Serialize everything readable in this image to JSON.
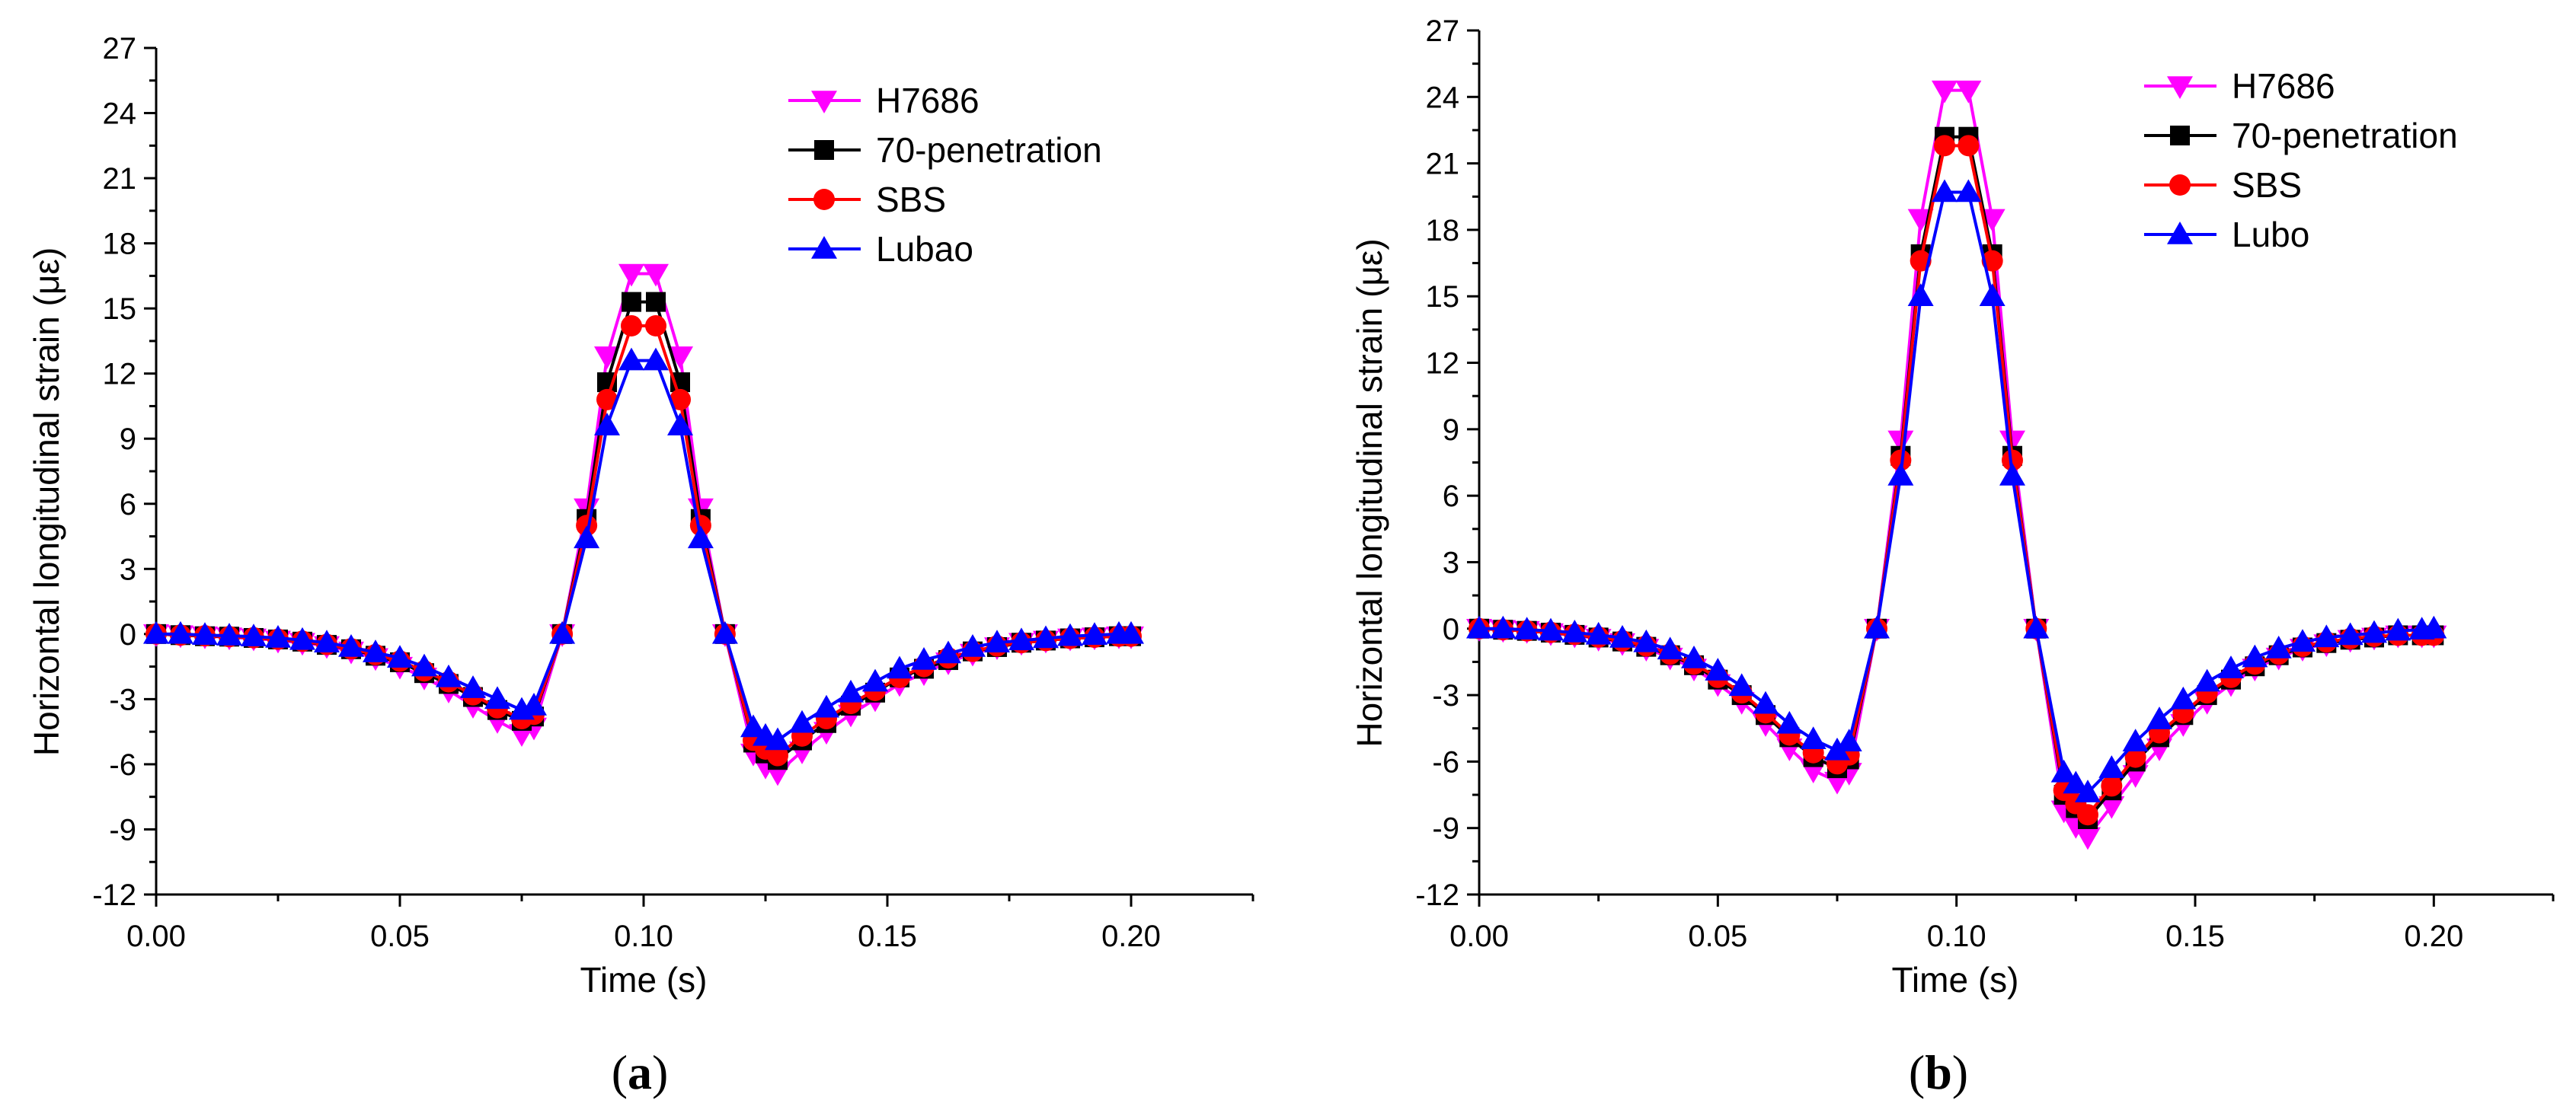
{
  "chart_data": [
    {
      "type": "line",
      "panel_label": "a",
      "xlabel": "Time (s)",
      "ylabel": "Horizontal longitudinal strain (με)",
      "xlim": [
        0.0,
        0.225
      ],
      "ylim": [
        -12,
        27
      ],
      "xticks": [
        "0.00",
        "0.05",
        "0.10",
        "0.15",
        "0.20"
      ],
      "yticks": [
        "-12",
        "-9",
        "-6",
        "-3",
        "0",
        "3",
        "6",
        "9",
        "12",
        "15",
        "18",
        "21",
        "24",
        "27"
      ],
      "legend_position": "top-right",
      "x": [
        0.0,
        0.005,
        0.01,
        0.015,
        0.02,
        0.025,
        0.03,
        0.035,
        0.04,
        0.045,
        0.05,
        0.055,
        0.06,
        0.065,
        0.07,
        0.075,
        0.0775,
        0.0833,
        0.0883,
        0.0925,
        0.0975,
        0.1025,
        0.1075,
        0.1117,
        0.1167,
        0.1225,
        0.125,
        0.1275,
        0.1325,
        0.1375,
        0.1425,
        0.1475,
        0.1525,
        0.1575,
        0.1625,
        0.1675,
        0.1725,
        0.1775,
        0.1825,
        0.1875,
        0.1925,
        0.1975,
        0.2
      ],
      "series": [
        {
          "name": "H7686",
          "color": "#ff00ff",
          "marker": "triangle-down",
          "values": [
            0.0,
            -0.05,
            -0.1,
            -0.15,
            -0.2,
            -0.3,
            -0.4,
            -0.55,
            -0.8,
            -1.1,
            -1.5,
            -2.0,
            -2.6,
            -3.3,
            -4.0,
            -4.6,
            -4.3,
            0.0,
            5.8,
            12.8,
            16.6,
            16.6,
            12.8,
            5.8,
            0.0,
            -5.5,
            -6.1,
            -6.4,
            -5.4,
            -4.5,
            -3.7,
            -3.0,
            -2.3,
            -1.8,
            -1.3,
            -0.9,
            -0.6,
            -0.4,
            -0.3,
            -0.2,
            -0.15,
            -0.1,
            -0.1
          ]
        },
        {
          "name": "70-penetration",
          "color": "#000000",
          "marker": "square",
          "values": [
            0.0,
            -0.05,
            -0.1,
            -0.12,
            -0.18,
            -0.25,
            -0.35,
            -0.5,
            -0.7,
            -1.0,
            -1.3,
            -1.8,
            -2.3,
            -2.9,
            -3.5,
            -4.0,
            -3.8,
            0.0,
            5.3,
            11.6,
            15.3,
            15.3,
            11.6,
            5.3,
            0.0,
            -5.0,
            -5.5,
            -5.8,
            -4.9,
            -4.1,
            -3.3,
            -2.7,
            -2.0,
            -1.6,
            -1.2,
            -0.8,
            -0.6,
            -0.4,
            -0.3,
            -0.2,
            -0.15,
            -0.1,
            -0.1
          ]
        },
        {
          "name": "SBS",
          "color": "#ff0000",
          "marker": "circle",
          "values": [
            0.0,
            -0.05,
            -0.08,
            -0.12,
            -0.17,
            -0.24,
            -0.33,
            -0.48,
            -0.68,
            -0.95,
            -1.25,
            -1.7,
            -2.2,
            -2.8,
            -3.4,
            -3.9,
            -3.7,
            0.0,
            5.0,
            10.8,
            14.2,
            14.2,
            10.8,
            5.0,
            0.0,
            -4.9,
            -5.3,
            -5.6,
            -4.7,
            -3.9,
            -3.2,
            -2.6,
            -2.0,
            -1.5,
            -1.1,
            -0.8,
            -0.55,
            -0.4,
            -0.3,
            -0.2,
            -0.15,
            -0.1,
            -0.1
          ]
        },
        {
          "name": "Lubao",
          "color": "#0000ff",
          "marker": "triangle-up",
          "values": [
            0.0,
            0.0,
            -0.05,
            -0.08,
            -0.12,
            -0.18,
            -0.28,
            -0.4,
            -0.6,
            -0.85,
            -1.1,
            -1.5,
            -2.0,
            -2.5,
            -3.0,
            -3.5,
            -3.3,
            0.0,
            4.4,
            9.6,
            12.6,
            12.6,
            9.6,
            4.4,
            0.0,
            -4.3,
            -4.7,
            -4.9,
            -4.1,
            -3.4,
            -2.7,
            -2.2,
            -1.6,
            -1.2,
            -0.9,
            -0.6,
            -0.4,
            -0.3,
            -0.2,
            -0.1,
            -0.05,
            0.0,
            0.0
          ]
        }
      ]
    },
    {
      "type": "line",
      "panel_label": "b",
      "xlabel": "Time (s)",
      "ylabel": "Horizontal longitudinal strain (με)",
      "xlim": [
        0.0,
        0.225
      ],
      "ylim": [
        -12,
        27
      ],
      "xticks": [
        "0.00",
        "0.05",
        "0.10",
        "0.15",
        "0.20"
      ],
      "yticks": [
        "-12",
        "-9",
        "-6",
        "-3",
        "0",
        "3",
        "6",
        "9",
        "12",
        "15",
        "18",
        "21",
        "24",
        "27"
      ],
      "legend_position": "top-right",
      "x": [
        0.0,
        0.005,
        0.01,
        0.015,
        0.02,
        0.025,
        0.03,
        0.035,
        0.04,
        0.045,
        0.05,
        0.055,
        0.06,
        0.065,
        0.07,
        0.075,
        0.0775,
        0.0833,
        0.0883,
        0.0925,
        0.0975,
        0.1025,
        0.1075,
        0.1117,
        0.1167,
        0.1225,
        0.125,
        0.1275,
        0.1325,
        0.1375,
        0.1425,
        0.1475,
        0.1525,
        0.1575,
        0.1625,
        0.1675,
        0.1725,
        0.1775,
        0.1825,
        0.1875,
        0.1925,
        0.1975,
        0.2
      ],
      "series": [
        {
          "name": "H7686",
          "color": "#ff00ff",
          "marker": "triangle-down",
          "values": [
            0.0,
            -0.05,
            -0.1,
            -0.2,
            -0.3,
            -0.45,
            -0.65,
            -0.9,
            -1.3,
            -1.8,
            -2.5,
            -3.3,
            -4.3,
            -5.4,
            -6.4,
            -6.9,
            -6.5,
            0.0,
            8.5,
            18.5,
            24.3,
            24.3,
            18.5,
            8.5,
            0.0,
            -8.2,
            -8.9,
            -9.4,
            -8.0,
            -6.6,
            -5.4,
            -4.3,
            -3.3,
            -2.5,
            -1.8,
            -1.3,
            -0.9,
            -0.7,
            -0.5,
            -0.4,
            -0.3,
            -0.3,
            -0.3
          ]
        },
        {
          "name": "70-penetration",
          "color": "#000000",
          "marker": "square",
          "values": [
            0.0,
            -0.05,
            -0.1,
            -0.18,
            -0.28,
            -0.4,
            -0.58,
            -0.82,
            -1.2,
            -1.65,
            -2.3,
            -3.0,
            -3.9,
            -4.9,
            -5.8,
            -6.3,
            -5.9,
            0.0,
            7.8,
            16.9,
            22.2,
            22.2,
            16.9,
            7.8,
            0.0,
            -7.5,
            -8.1,
            -8.6,
            -7.3,
            -6.0,
            -4.9,
            -3.9,
            -3.0,
            -2.3,
            -1.7,
            -1.2,
            -0.85,
            -0.65,
            -0.5,
            -0.4,
            -0.3,
            -0.3,
            -0.3
          ]
        },
        {
          "name": "SBS",
          "color": "#ff0000",
          "marker": "circle",
          "values": [
            0.0,
            -0.05,
            -0.1,
            -0.17,
            -0.26,
            -0.38,
            -0.55,
            -0.78,
            -1.15,
            -1.6,
            -2.2,
            -2.9,
            -3.8,
            -4.8,
            -5.6,
            -6.1,
            -5.7,
            0.0,
            7.6,
            16.6,
            21.8,
            21.8,
            16.6,
            7.6,
            0.0,
            -7.3,
            -7.9,
            -8.4,
            -7.1,
            -5.8,
            -4.7,
            -3.8,
            -2.9,
            -2.2,
            -1.6,
            -1.15,
            -0.8,
            -0.6,
            -0.45,
            -0.35,
            -0.3,
            -0.3,
            -0.3
          ]
        },
        {
          "name": "Lubo",
          "color": "#0000ff",
          "marker": "triangle-up",
          "values": [
            0.0,
            0.0,
            -0.05,
            -0.1,
            -0.18,
            -0.28,
            -0.42,
            -0.62,
            -0.95,
            -1.35,
            -1.9,
            -2.6,
            -3.4,
            -4.3,
            -5.0,
            -5.5,
            -5.1,
            0.0,
            6.9,
            15.0,
            19.7,
            19.7,
            15.0,
            6.9,
            0.0,
            -6.5,
            -7.0,
            -7.4,
            -6.3,
            -5.1,
            -4.1,
            -3.2,
            -2.4,
            -1.8,
            -1.3,
            -0.9,
            -0.6,
            -0.4,
            -0.3,
            -0.2,
            -0.1,
            -0.05,
            0.0
          ]
        }
      ]
    }
  ]
}
